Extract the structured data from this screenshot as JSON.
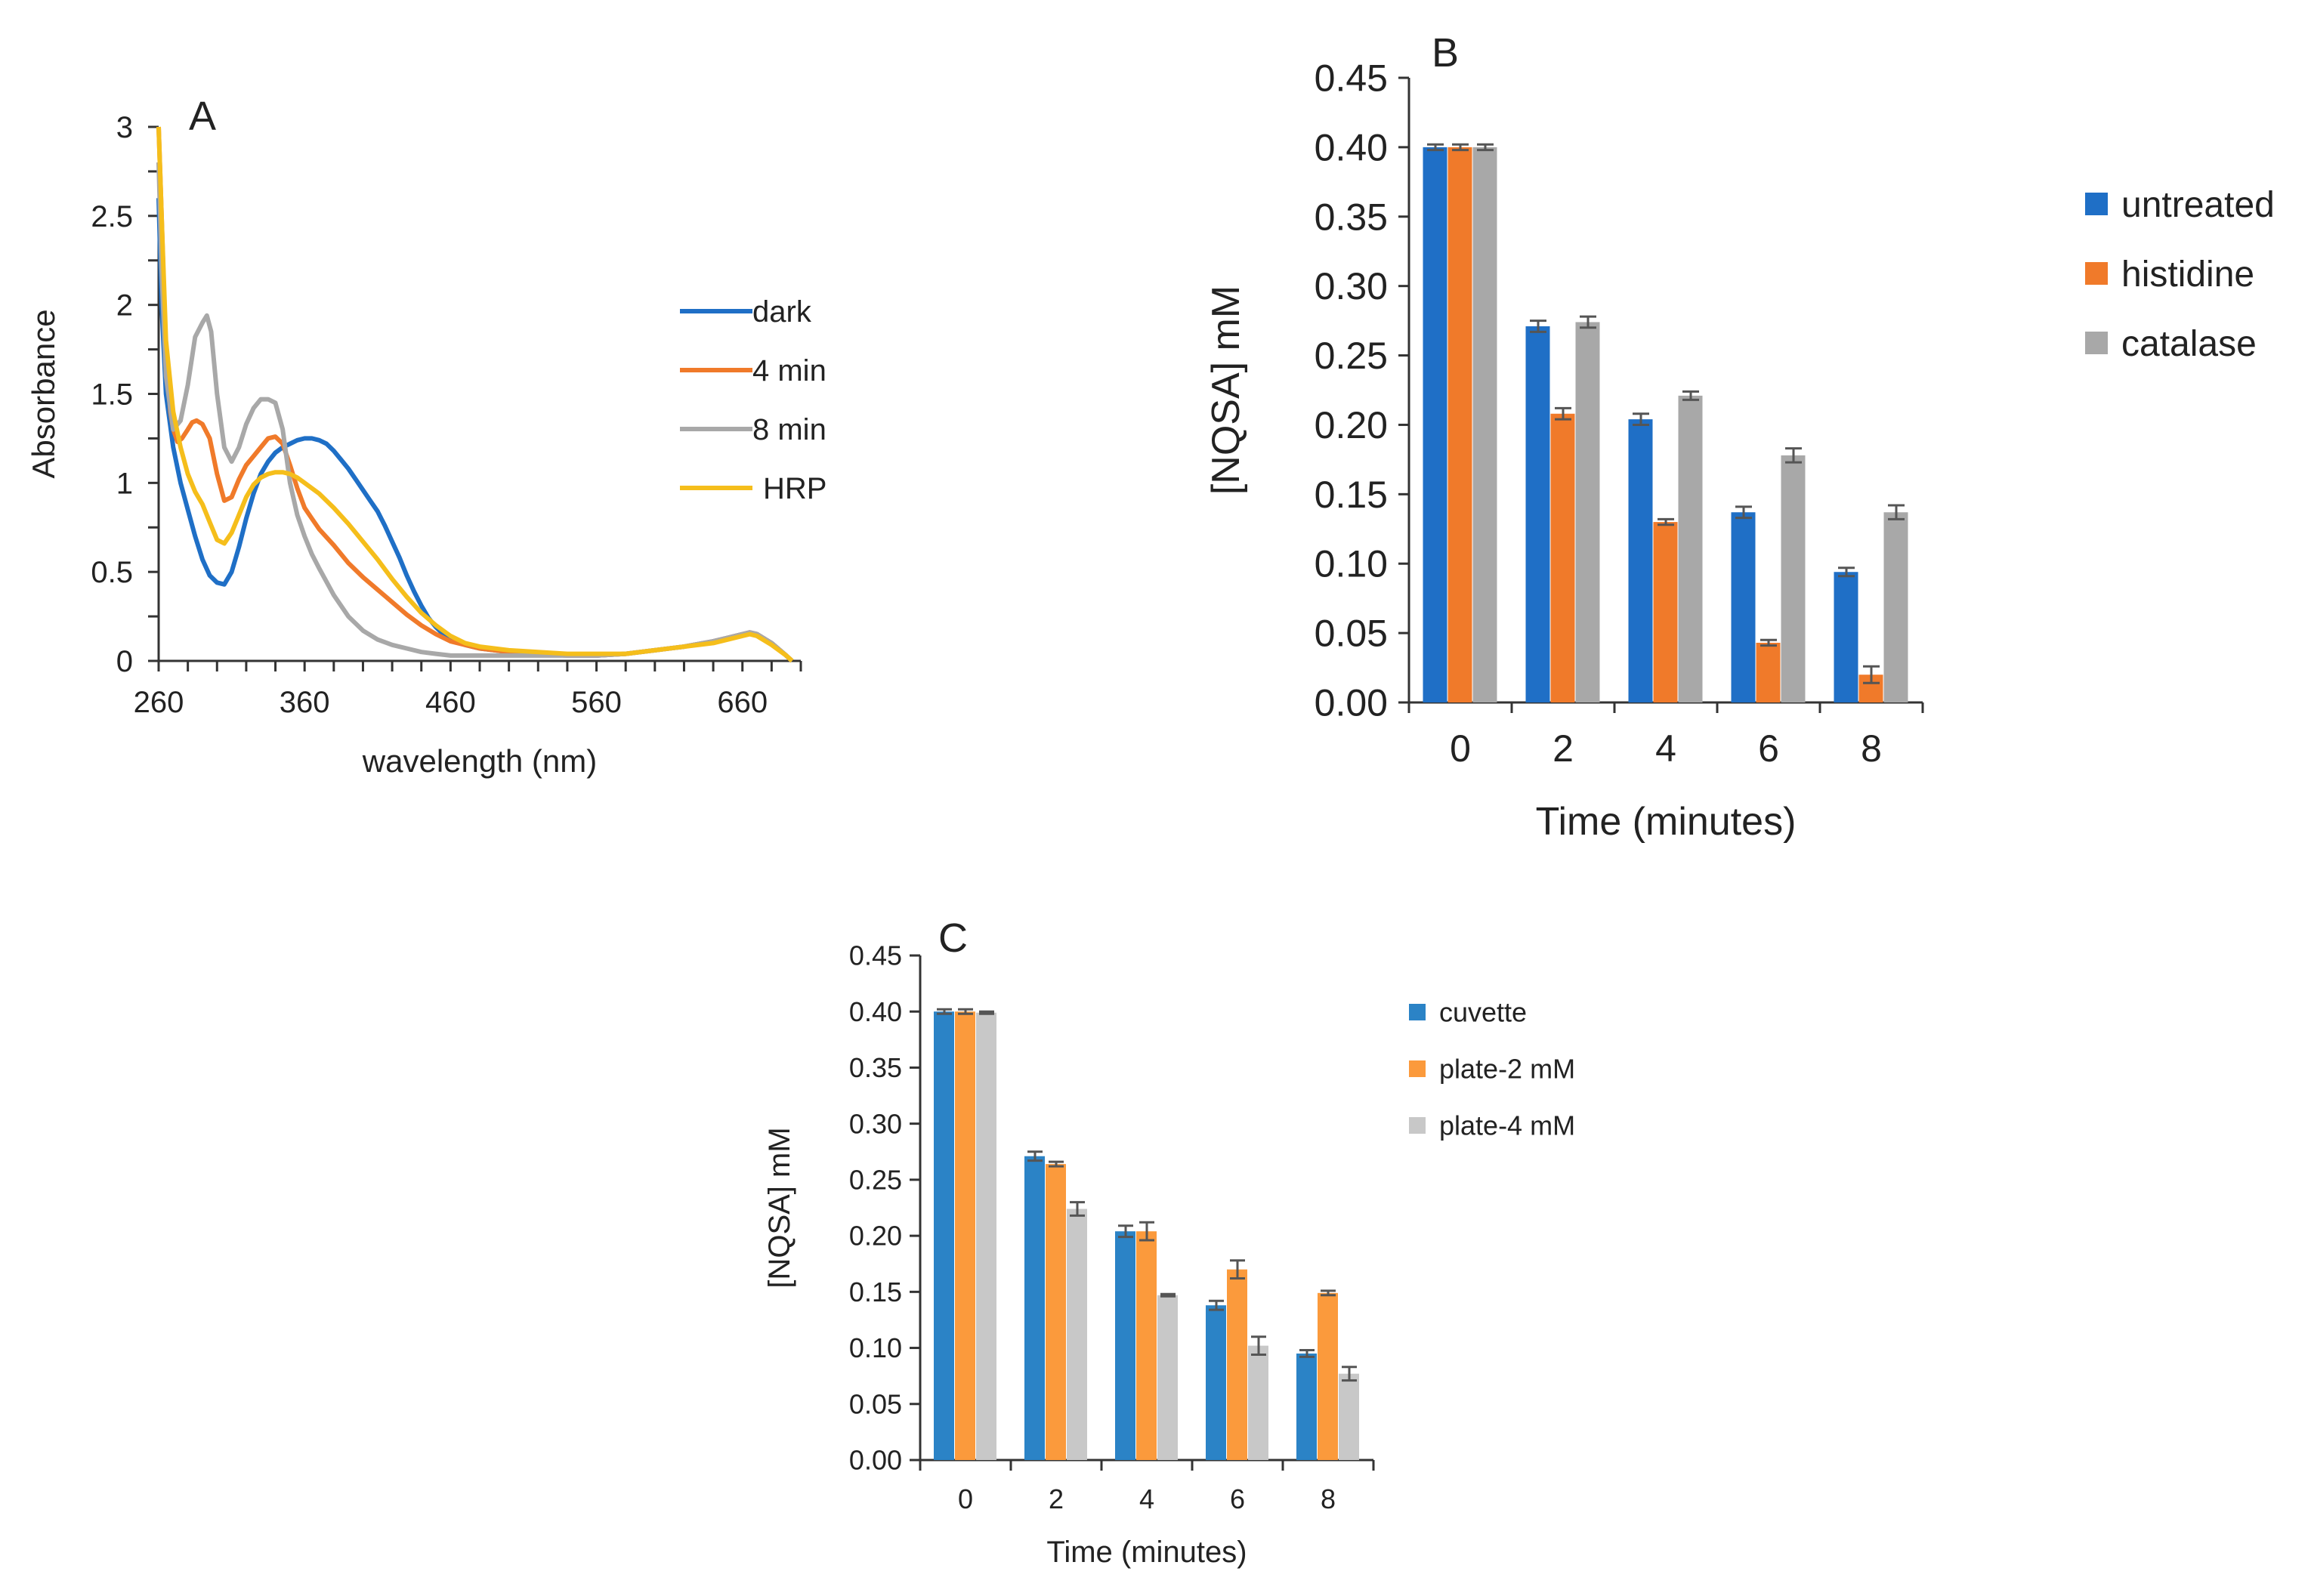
{
  "chart_data": [
    {
      "panel": "A",
      "type": "line",
      "title": "",
      "xlabel": "wavelength  (nm)",
      "ylabel": "Absorbance",
      "xlim": [
        260,
        700
      ],
      "ylim": [
        0,
        3
      ],
      "xticks": [
        "260",
        "360",
        "460",
        "560",
        "660"
      ],
      "yticks": [
        "0",
        "0.5",
        "1",
        "1.5",
        "2",
        "2.5",
        "3"
      ],
      "legend_position": "right",
      "series": [
        {
          "name": "dark",
          "color": "#1f6fc6",
          "x": [
            260,
            262,
            265,
            270,
            275,
            280,
            285,
            290,
            295,
            300,
            305,
            310,
            315,
            320,
            325,
            330,
            335,
            340,
            345,
            350,
            355,
            360,
            365,
            370,
            375,
            380,
            385,
            390,
            395,
            400,
            405,
            410,
            415,
            420,
            425,
            430,
            435,
            440,
            445,
            450,
            455,
            460,
            470,
            480,
            500,
            520,
            540,
            560,
            580,
            600,
            620,
            640,
            650,
            660,
            665,
            670,
            680,
            690,
            694
          ],
          "y": [
            2.6,
            2.0,
            1.5,
            1.2,
            1.0,
            0.85,
            0.7,
            0.57,
            0.48,
            0.44,
            0.43,
            0.5,
            0.64,
            0.8,
            0.94,
            1.05,
            1.12,
            1.17,
            1.2,
            1.22,
            1.24,
            1.25,
            1.25,
            1.24,
            1.22,
            1.18,
            1.13,
            1.08,
            1.02,
            0.96,
            0.9,
            0.84,
            0.76,
            0.67,
            0.58,
            0.48,
            0.39,
            0.31,
            0.24,
            0.19,
            0.15,
            0.12,
            0.09,
            0.07,
            0.05,
            0.04,
            0.03,
            0.03,
            0.04,
            0.06,
            0.08,
            0.11,
            0.13,
            0.15,
            0.16,
            0.15,
            0.1,
            0.03,
            0.0
          ]
        },
        {
          "name": "4 min",
          "color": "#f07a2a",
          "x": [
            260,
            262,
            265,
            268,
            270,
            273,
            276,
            280,
            283,
            286,
            290,
            295,
            300,
            305,
            310,
            315,
            320,
            325,
            330,
            335,
            340,
            345,
            350,
            355,
            360,
            365,
            370,
            380,
            390,
            400,
            410,
            420,
            430,
            440,
            450,
            460,
            470,
            480,
            500,
            520,
            540,
            560,
            580,
            600,
            620,
            640,
            650,
            660,
            665,
            670,
            680,
            690,
            694
          ],
          "y": [
            3.0,
            2.5,
            1.7,
            1.4,
            1.3,
            1.23,
            1.25,
            1.3,
            1.34,
            1.35,
            1.33,
            1.25,
            1.05,
            0.9,
            0.92,
            1.02,
            1.1,
            1.15,
            1.2,
            1.25,
            1.26,
            1.22,
            1.1,
            0.97,
            0.86,
            0.8,
            0.74,
            0.65,
            0.55,
            0.47,
            0.4,
            0.33,
            0.26,
            0.2,
            0.15,
            0.11,
            0.09,
            0.07,
            0.05,
            0.04,
            0.03,
            0.03,
            0.04,
            0.06,
            0.08,
            0.11,
            0.13,
            0.15,
            0.16,
            0.15,
            0.1,
            0.03,
            0.0
          ]
        },
        {
          "name": "8 min",
          "color": "#a8a8a8",
          "x": [
            260,
            262,
            265,
            270,
            275,
            280,
            285,
            290,
            293,
            296,
            300,
            305,
            310,
            315,
            320,
            325,
            330,
            335,
            340,
            345,
            350,
            355,
            360,
            365,
            370,
            380,
            390,
            400,
            410,
            420,
            430,
            440,
            450,
            460,
            470,
            480,
            500,
            520,
            540,
            560,
            580,
            600,
            620,
            640,
            650,
            660,
            665,
            670,
            680,
            690,
            694
          ],
          "y": [
            2.8,
            2.2,
            1.6,
            1.3,
            1.35,
            1.55,
            1.82,
            1.9,
            1.94,
            1.85,
            1.5,
            1.2,
            1.12,
            1.2,
            1.33,
            1.42,
            1.47,
            1.47,
            1.45,
            1.3,
            1.0,
            0.82,
            0.7,
            0.6,
            0.52,
            0.37,
            0.25,
            0.17,
            0.12,
            0.09,
            0.07,
            0.05,
            0.04,
            0.03,
            0.03,
            0.03,
            0.03,
            0.03,
            0.03,
            0.03,
            0.04,
            0.06,
            0.08,
            0.11,
            0.13,
            0.15,
            0.16,
            0.15,
            0.1,
            0.03,
            0.0
          ]
        },
        {
          "name": "HRP",
          "color": "#f5be1b",
          "x": [
            260,
            262,
            265,
            270,
            275,
            280,
            285,
            290,
            295,
            300,
            305,
            310,
            315,
            320,
            325,
            330,
            335,
            340,
            345,
            350,
            355,
            360,
            370,
            380,
            390,
            400,
            410,
            420,
            430,
            440,
            450,
            460,
            470,
            480,
            500,
            520,
            540,
            560,
            580,
            600,
            620,
            640,
            650,
            660,
            665,
            670,
            680,
            690,
            694
          ],
          "y": [
            3.0,
            2.5,
            1.8,
            1.4,
            1.2,
            1.05,
            0.95,
            0.88,
            0.78,
            0.68,
            0.66,
            0.72,
            0.82,
            0.92,
            0.99,
            1.03,
            1.05,
            1.06,
            1.06,
            1.05,
            1.03,
            1.0,
            0.94,
            0.86,
            0.77,
            0.67,
            0.57,
            0.46,
            0.36,
            0.27,
            0.2,
            0.14,
            0.1,
            0.08,
            0.06,
            0.05,
            0.04,
            0.04,
            0.04,
            0.06,
            0.08,
            0.1,
            0.12,
            0.14,
            0.15,
            0.14,
            0.09,
            0.03,
            0.0
          ]
        }
      ]
    },
    {
      "panel": "B",
      "type": "bar",
      "title": "",
      "xlabel": "Time (minutes)",
      "ylabel": "[NQSA] mM",
      "ylim": [
        0,
        0.45
      ],
      "yticks": [
        "0.00",
        "0.05",
        "0.10",
        "0.15",
        "0.20",
        "0.25",
        "0.30",
        "0.35",
        "0.40",
        "0.45"
      ],
      "categories": [
        "0",
        "2",
        "4",
        "6",
        "8"
      ],
      "legend_position": "right",
      "series": [
        {
          "name": "untreated",
          "color": "#1f6fc6",
          "values": [
            0.4,
            0.271,
            0.204,
            0.137,
            0.094
          ],
          "errors": [
            0.002,
            0.004,
            0.004,
            0.004,
            0.003
          ]
        },
        {
          "name": "histidine",
          "color": "#f07a2a",
          "values": [
            0.4,
            0.208,
            0.13,
            0.043,
            0.02
          ],
          "errors": [
            0.002,
            0.004,
            0.002,
            0.002,
            0.006
          ]
        },
        {
          "name": "catalase",
          "color": "#a8a8a8",
          "values": [
            0.4,
            0.274,
            0.221,
            0.178,
            0.137
          ],
          "errors": [
            0.002,
            0.004,
            0.003,
            0.005,
            0.005
          ]
        }
      ]
    },
    {
      "panel": "C",
      "type": "bar",
      "title": "",
      "xlabel": "Time (minutes)",
      "ylabel": "[NQSA] mM",
      "ylim": [
        0,
        0.45
      ],
      "yticks": [
        "0.00",
        "0.05",
        "0.10",
        "0.15",
        "0.20",
        "0.25",
        "0.30",
        "0.35",
        "0.40",
        "0.45"
      ],
      "categories": [
        "0",
        "2",
        "4",
        "6",
        "8"
      ],
      "legend_position": "right",
      "series": [
        {
          "name": "cuvette",
          "color": "#2b83c6",
          "values": [
            0.4,
            0.271,
            0.204,
            0.138,
            0.095
          ],
          "errors": [
            0.002,
            0.004,
            0.005,
            0.004,
            0.003
          ]
        },
        {
          "name": "plate-2 mM",
          "color": "#fb9a3c",
          "values": [
            0.4,
            0.264,
            0.204,
            0.17,
            0.149
          ],
          "errors": [
            0.002,
            0.002,
            0.008,
            0.008,
            0.002
          ]
        },
        {
          "name": "plate-4 mM",
          "color": "#c8c8c8",
          "values": [
            0.399,
            0.224,
            0.147,
            0.102,
            0.077
          ],
          "errors": [
            0.001,
            0.006,
            0.001,
            0.008,
            0.006
          ]
        }
      ]
    }
  ]
}
